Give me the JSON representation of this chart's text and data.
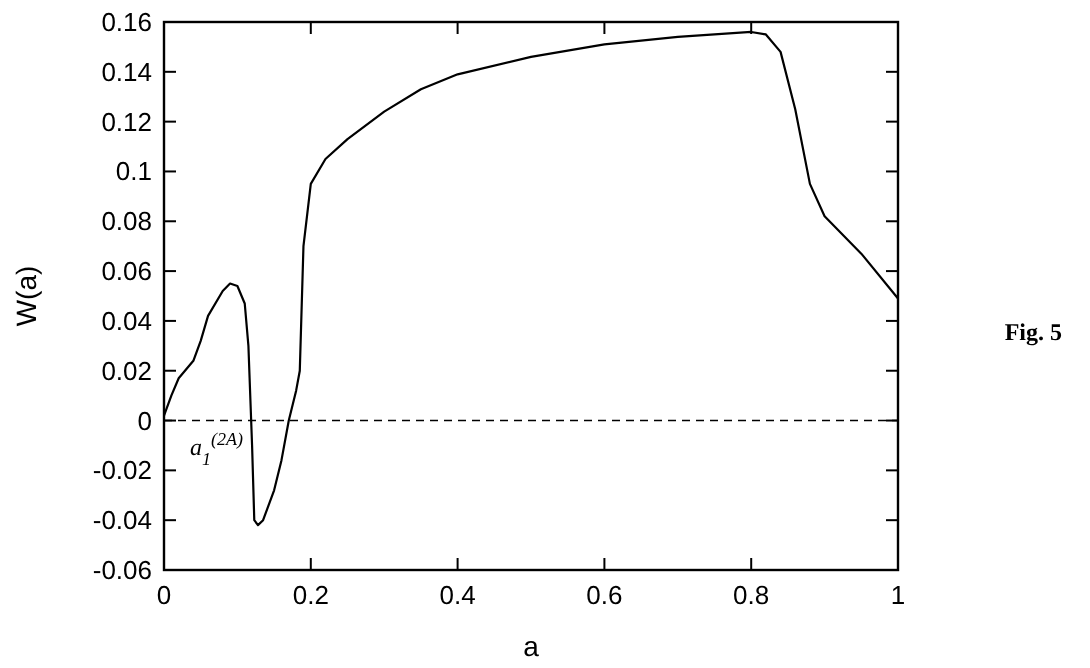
{
  "chart_data": {
    "type": "line",
    "xlabel": "a",
    "ylabel": "W(a)",
    "x": [
      0,
      0.01,
      0.02,
      0.04,
      0.05,
      0.06,
      0.08,
      0.09,
      0.1,
      0.11,
      0.115,
      0.12,
      0.123,
      0.128,
      0.135,
      0.15,
      0.16,
      0.17,
      0.18,
      0.185,
      0.19,
      0.2,
      0.22,
      0.25,
      0.3,
      0.35,
      0.4,
      0.5,
      0.6,
      0.7,
      0.8,
      0.82,
      0.84,
      0.86,
      0.88,
      0.9,
      0.95,
      1
    ],
    "series": [
      {
        "color": "#000000",
        "values": [
          0.002,
          0.01,
          0.017,
          0.024,
          0.032,
          0.042,
          0.052,
          0.055,
          0.054,
          0.047,
          0.03,
          -0.01,
          -0.04,
          -0.042,
          -0.04,
          -0.028,
          -0.016,
          0,
          0.012,
          0.02,
          0.07,
          0.095,
          0.105,
          0.113,
          0.124,
          0.133,
          0.139,
          0.146,
          0.151,
          0.154,
          0.156,
          0.155,
          0.148,
          0.125,
          0.095,
          0.082,
          0.067,
          0.049
        ]
      }
    ],
    "xlim": [
      0,
      1
    ],
    "xticks": [
      0,
      0.2,
      0.4,
      0.6,
      0.8,
      1
    ],
    "ylim": [
      -0.06,
      0.16
    ],
    "yticks": [
      -0.06,
      -0.04,
      -0.02,
      0,
      0.02,
      0.04,
      0.06,
      0.08,
      0.1,
      0.12,
      0.14,
      0.16
    ],
    "ref_lines": [
      {
        "axis": "y",
        "value": 0,
        "line_style": "dashed",
        "color": "#000000"
      }
    ],
    "annotations": [
      {
        "text": "a$_{1}$$^{(2A)}$",
        "x": 0.12,
        "y": 0
      },
      "Fig. 5"
    ],
    "line_style": "solid",
    "marker": "none",
    "grid": false
  }
}
